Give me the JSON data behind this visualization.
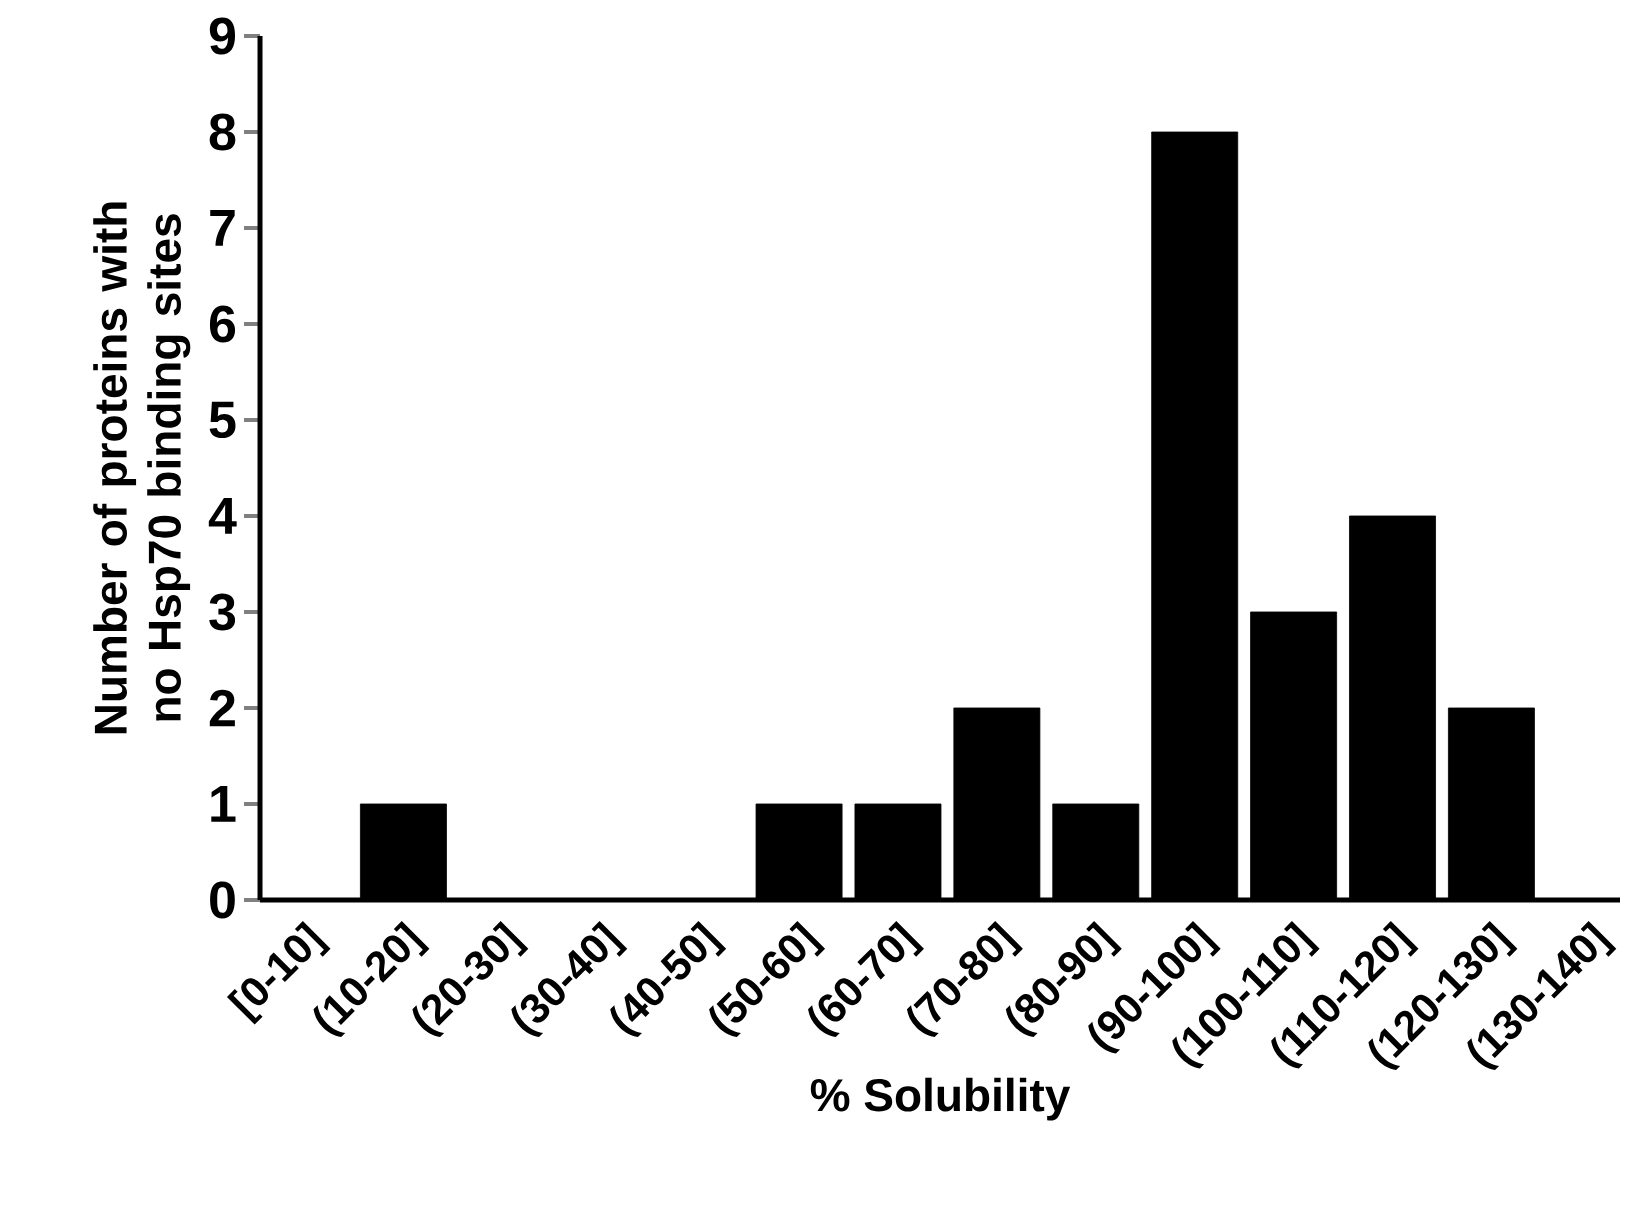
{
  "chart_data": {
    "type": "bar",
    "xlabel": "% Solubility",
    "ylabel": "Number of proteins with no Hsp70 binding sites",
    "categories": [
      "[0-10]",
      "(10-20]",
      "(20-30]",
      "(30-40]",
      "(40-50]",
      "(50-60]",
      "(60-70]",
      "(70-80]",
      "(80-90]",
      "(90-100]",
      "(100-110]",
      "(110-120]",
      "(120-130]",
      "(130-140]"
    ],
    "values": [
      0,
      1,
      0,
      0,
      0,
      1,
      1,
      2,
      1,
      8,
      3,
      4,
      2,
      0
    ],
    "color": "#000000",
    "ylim": [
      0,
      9
    ],
    "yticks": [
      0,
      1,
      2,
      3,
      4,
      5,
      6,
      7,
      8,
      9
    ]
  }
}
